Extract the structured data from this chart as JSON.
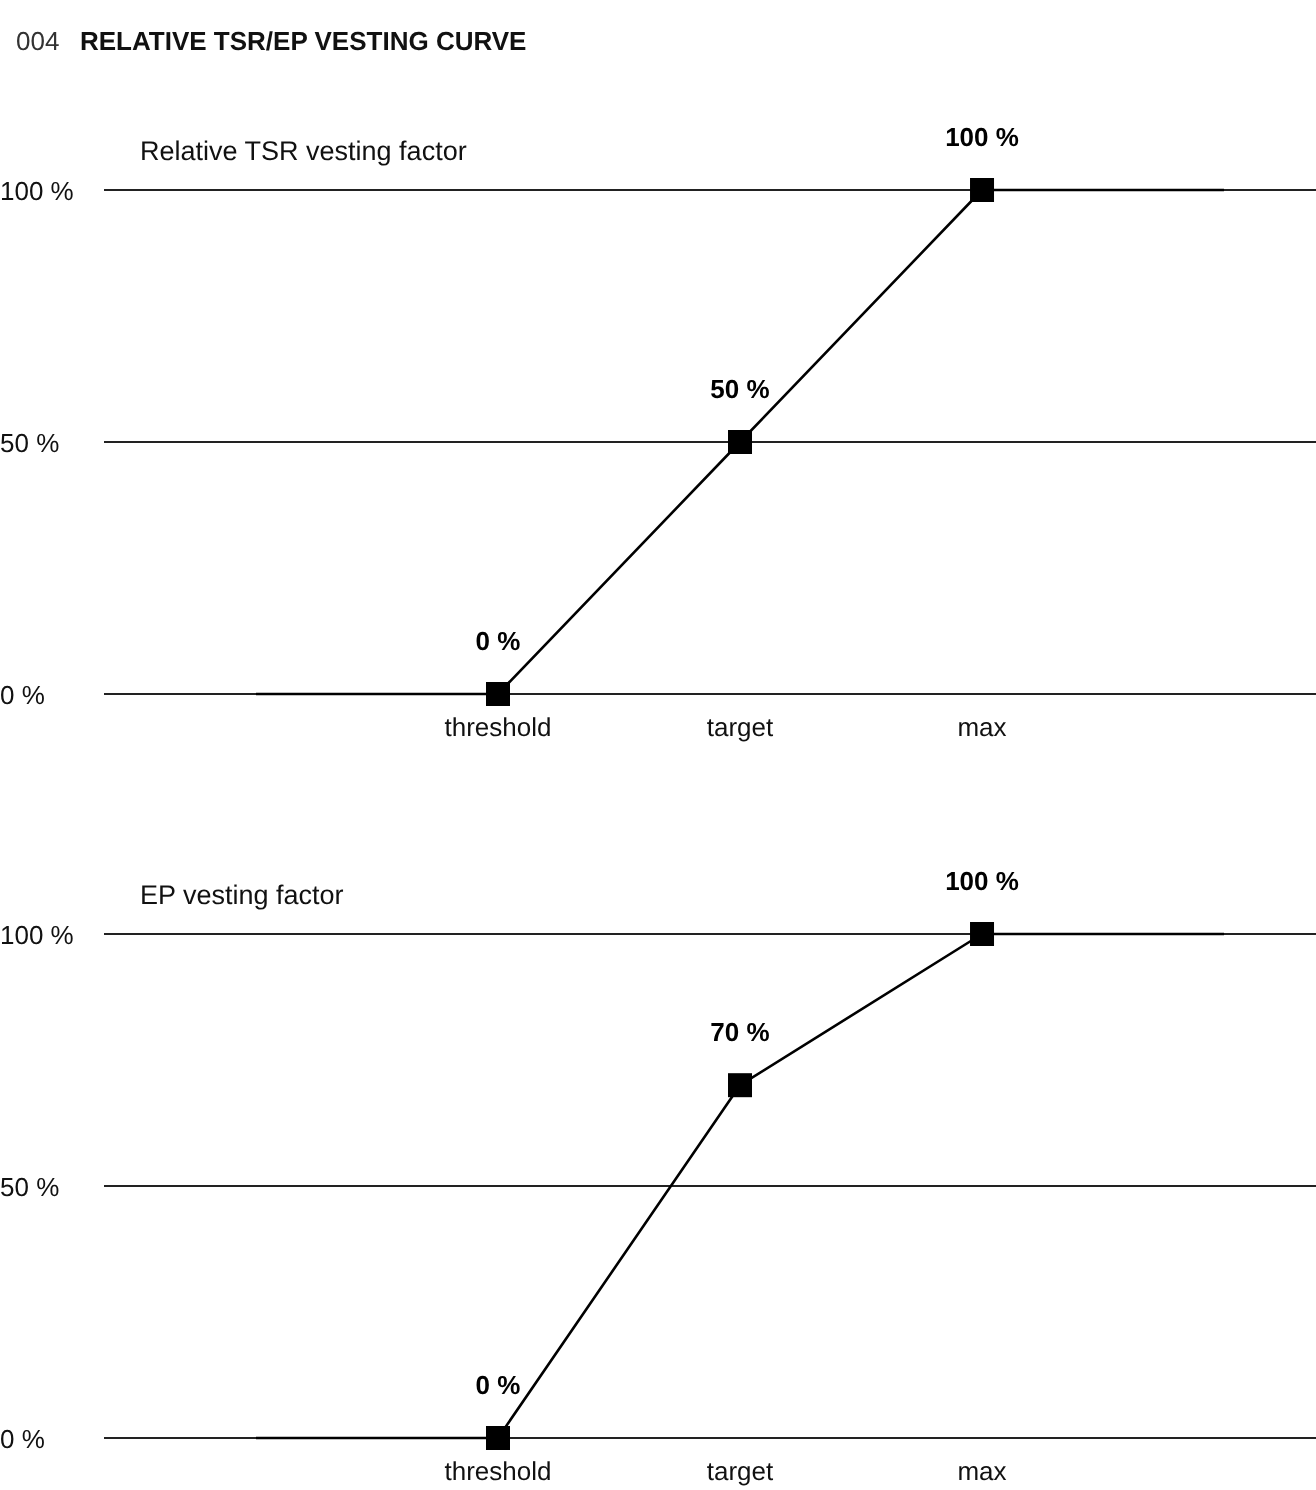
{
  "chart_data": [
    {
      "type": "line",
      "title": "RELATIVE TSR/EP VESTING CURVE",
      "annotations": [
        "004"
      ],
      "ylabel": "Relative TSR vesting factor",
      "categories": [
        null,
        "threshold",
        "target",
        "max",
        null
      ],
      "ylim": [
        0,
        100
      ],
      "yticks": [
        {
          "value": 0,
          "label": "0 %"
        },
        {
          "value": 50,
          "label": "50 %"
        },
        {
          "value": 100,
          "label": "100 %"
        }
      ],
      "grid": "y",
      "series": [
        {
          "color": "#000000",
          "values": [
            0,
            0,
            50,
            100,
            100
          ],
          "marker": "none"
        },
        {
          "type": "scatter",
          "color": "#000000",
          "x": [
            "threshold",
            "target",
            "max"
          ],
          "values": [
            0,
            50,
            100
          ],
          "marker": "square",
          "value_labels": [
            "0 %",
            "50 %",
            "100 %"
          ]
        }
      ]
    },
    {
      "type": "line",
      "ylabel": "EP vesting factor",
      "categories": [
        null,
        "threshold",
        "target",
        "max",
        null
      ],
      "ylim": [
        0,
        100
      ],
      "yticks": [
        {
          "value": 0,
          "label": "0 %"
        },
        {
          "value": 50,
          "label": "50 %"
        },
        {
          "value": 100,
          "label": "100 %"
        }
      ],
      "grid": "y",
      "series": [
        {
          "color": "#000000",
          "values": [
            0,
            0,
            70,
            100,
            100
          ],
          "marker": "none"
        },
        {
          "type": "scatter",
          "color": "#000000",
          "x": [
            "threshold",
            "target",
            "max"
          ],
          "values": [
            0,
            70,
            100
          ],
          "marker": "square",
          "value_labels": [
            "0 %",
            "70 %",
            "100 %"
          ]
        }
      ]
    }
  ]
}
